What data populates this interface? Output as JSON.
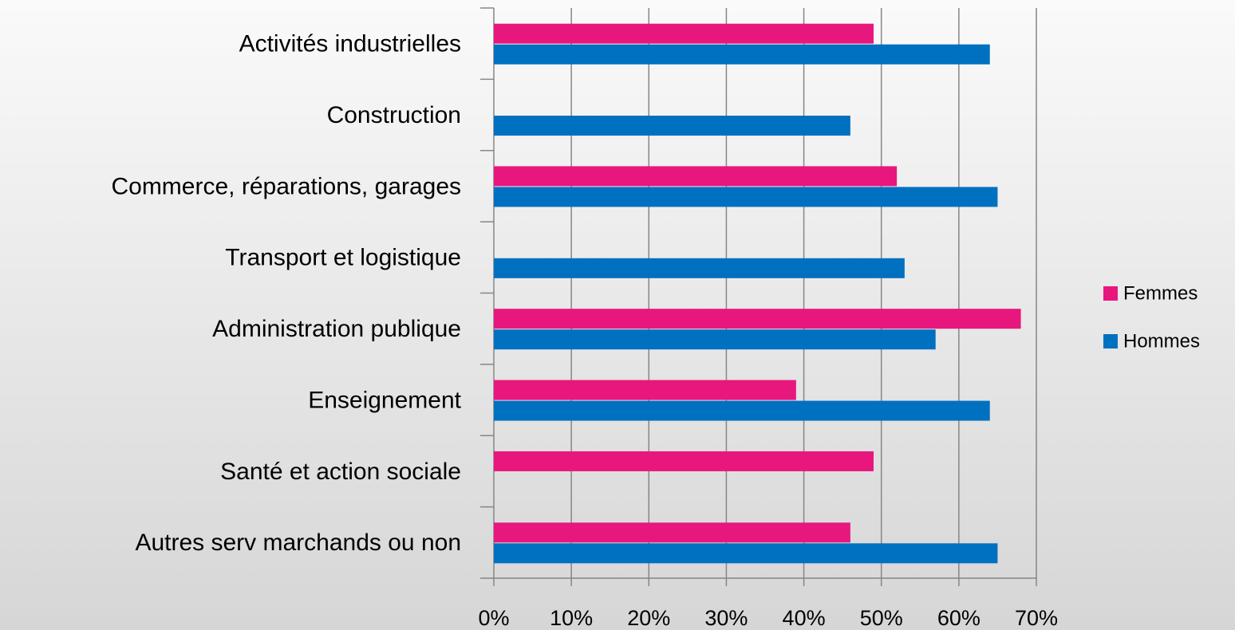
{
  "chart_data": {
    "type": "bar",
    "orientation": "horizontal",
    "categories": [
      "Activités industrielles",
      "Construction",
      "Commerce, réparations, garages",
      "Transport et logistique",
      "Administration publique",
      "Enseignement",
      "Santé et action sociale",
      "Autres serv marchands ou non"
    ],
    "series": [
      {
        "name": "Femmes",
        "color": "#e8177d",
        "values": [
          49,
          null,
          52,
          null,
          68,
          39,
          49,
          46
        ]
      },
      {
        "name": "Hommes",
        "color": "#0070c0",
        "values": [
          64,
          46,
          65,
          53,
          57,
          64,
          null,
          65
        ]
      }
    ],
    "xlim": [
      0,
      70
    ],
    "xticks": [
      {
        "value": 0,
        "label": "0%"
      },
      {
        "value": 10,
        "label": "10%"
      },
      {
        "value": 20,
        "label": "20%"
      },
      {
        "value": 30,
        "label": "30%"
      },
      {
        "value": 40,
        "label": "40%"
      },
      {
        "value": 50,
        "label": "50%"
      },
      {
        "value": 60,
        "label": "60%"
      },
      {
        "value": 70,
        "label": "70%"
      }
    ],
    "grid": true,
    "legend": "right"
  }
}
